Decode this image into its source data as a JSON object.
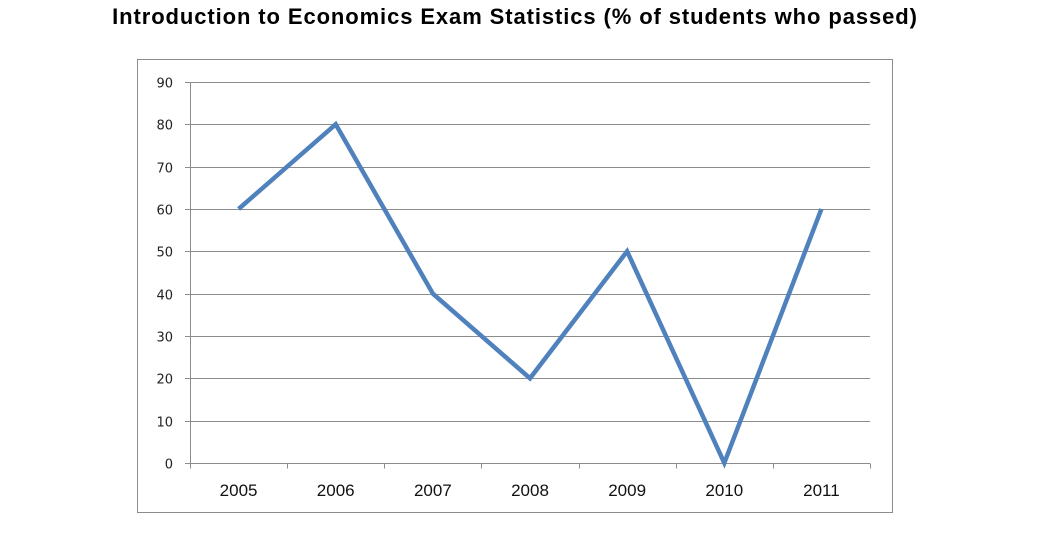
{
  "chart_data": {
    "type": "line",
    "title": "Introduction to Economics Exam Statistics (% of students who passed)",
    "categories": [
      "2005",
      "2006",
      "2007",
      "2008",
      "2009",
      "2010",
      "2011"
    ],
    "values": [
      60,
      80,
      40,
      20,
      50,
      0,
      60
    ],
    "ylim": [
      0,
      90
    ],
    "yticks": [
      0,
      10,
      20,
      30,
      40,
      50,
      60,
      70,
      80,
      90
    ],
    "grid": true,
    "legend": "none",
    "line_color": "#4f81bd",
    "grid_color": "#8c8c8c"
  }
}
